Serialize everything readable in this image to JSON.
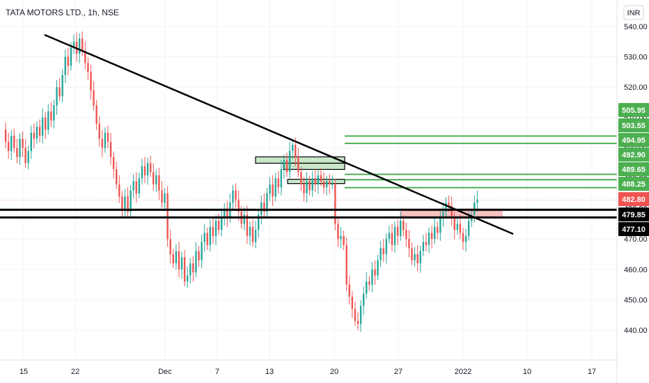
{
  "chart_data": {
    "type": "candlestick",
    "title": "TATA MOTORS LTD., 1h, NSE",
    "currency": "INR",
    "ylim": [
      436,
      542
    ],
    "y_ticks": [
      440,
      450,
      460,
      470,
      480,
      490,
      500,
      510,
      520,
      530,
      540
    ],
    "x_ticks": [
      "15",
      "22",
      "Dec",
      "7",
      "13",
      "20",
      "27",
      "2022",
      "10",
      "17"
    ],
    "colors": {
      "up": "#26a69a",
      "down": "#ef5350",
      "price_line": "#ef5350",
      "zone_green": "#4caf50",
      "zone_red": "#ef9a9a"
    },
    "closes": [
      506,
      502,
      499,
      504,
      500,
      497,
      503,
      500,
      495,
      499,
      505,
      503,
      507,
      504,
      510,
      506,
      512,
      509,
      514,
      520,
      517,
      524,
      530,
      527,
      533,
      535,
      531,
      536,
      532,
      528,
      525,
      519,
      514,
      508,
      503,
      500,
      505,
      502,
      497,
      493,
      488,
      484,
      480,
      484,
      479,
      486,
      489,
      485,
      490,
      494,
      491,
      495,
      492,
      488,
      491,
      486,
      482,
      485,
      470,
      465,
      462,
      466,
      460,
      464,
      456,
      458,
      462,
      459,
      466,
      463,
      469,
      472,
      468,
      474,
      471,
      476,
      473,
      477,
      480,
      477,
      482,
      486,
      483,
      479,
      475,
      478,
      471,
      474,
      469,
      473,
      478,
      482,
      479,
      485,
      488,
      484,
      490,
      487,
      493,
      496,
      492,
      499,
      501,
      497,
      492,
      488,
      485,
      489,
      486,
      490,
      488,
      491,
      489,
      487,
      489,
      488,
      488,
      475,
      470,
      471,
      468,
      455,
      451,
      447,
      443,
      442,
      448,
      452,
      456,
      455,
      460,
      458,
      463,
      467,
      465,
      470,
      472,
      468,
      474,
      471,
      476,
      473,
      470,
      467,
      463,
      465,
      462,
      466,
      469,
      468,
      472,
      470,
      474,
      472,
      477,
      479,
      482,
      481,
      477,
      473,
      475,
      472,
      469,
      471,
      476,
      478,
      482,
      483
    ],
    "series": [
      {
        "name": "Resistance zone",
        "values": [
          494.95,
          505.95
        ]
      },
      {
        "name": "Resistance zone",
        "values": [
          492.9,
          494.95
        ]
      },
      {
        "name": "Resistance zone",
        "values": [
          488.25,
          489.65
        ]
      },
      {
        "name": "Support zone",
        "values": [
          477.1,
          479.85
        ]
      }
    ],
    "levels": [
      479.85,
      477.1
    ],
    "trendline": {
      "from": [
        15,
        537
      ],
      "to": [
        55,
        471
      ]
    },
    "price_tags": [
      {
        "label": "505.95",
        "value": 505.95,
        "kind": "green"
      },
      {
        "label": "503.55",
        "value": 503.55,
        "kind": "green"
      },
      {
        "label": "494.95",
        "value": 494.95,
        "kind": "green"
      },
      {
        "label": "492.90",
        "value": 492.9,
        "kind": "green"
      },
      {
        "label": "489.65",
        "value": 489.65,
        "kind": "green"
      },
      {
        "label": "488.25",
        "value": 488.25,
        "kind": "green"
      },
      {
        "label": "482.80",
        "value": 482.8,
        "kind": "red"
      },
      {
        "label": "479.85",
        "value": 479.85,
        "kind": "black"
      },
      {
        "label": "477.10",
        "value": 477.1,
        "kind": "black"
      }
    ]
  }
}
